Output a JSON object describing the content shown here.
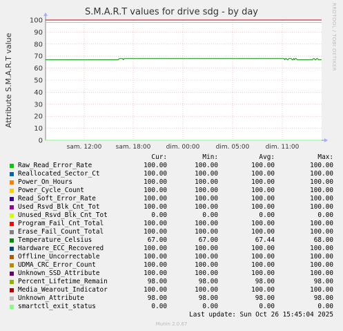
{
  "title": "S.M.A.R.T values for drive sdg - by day",
  "y_axis_label": "Attribute S.M.A.R.T value",
  "watermark": "RRDTOOL / TOBI OETIKER",
  "footer": "Munin 2.0.67",
  "last_update": "Last update: Sun Oct 26 15:45:04 2025",
  "legend_headers": {
    "cur": "Cur:",
    "min": "Min:",
    "avg": "Avg:",
    "max": "Max:"
  },
  "colors": {
    "background": "#f0f0f0",
    "plot_background": "#ffffff",
    "grid": "#e6a0a0",
    "frame": "#cccccc"
  },
  "chart_data": {
    "type": "line",
    "title": "S.M.A.R.T values for drive sdg - by day",
    "ylabel": "Attribute S.M.A.R.T value",
    "ylim": [
      0,
      100
    ],
    "yticks": [
      0,
      10,
      20,
      30,
      40,
      50,
      60,
      70,
      80,
      90,
      100
    ],
    "xticks": [
      "sam. 12:00",
      "sam. 18:00",
      "dim. 00:00",
      "dim. 05:00",
      "dim. 11:00"
    ],
    "grid": true,
    "series": [
      {
        "name": "Raw_Read_Error_Rate",
        "color": "#00cc00",
        "cur": "100.00",
        "min": "100.00",
        "avg": "100.00",
        "max": "100.00"
      },
      {
        "name": "Reallocated_Sector_Ct",
        "color": "#0066b3",
        "cur": "100.00",
        "min": "100.00",
        "avg": "100.00",
        "max": "100.00"
      },
      {
        "name": "Power_On_Hours",
        "color": "#ff8000",
        "cur": "100.00",
        "min": "100.00",
        "avg": "100.00",
        "max": "100.00"
      },
      {
        "name": "Power_Cycle_Count",
        "color": "#ffcc00",
        "cur": "100.00",
        "min": "100.00",
        "avg": "100.00",
        "max": "100.00"
      },
      {
        "name": "Read_Soft_Error_Rate",
        "color": "#330099",
        "cur": "100.00",
        "min": "100.00",
        "avg": "100.00",
        "max": "100.00"
      },
      {
        "name": "Used_Rsvd_Blk_Cnt_Tot",
        "color": "#990099",
        "cur": "100.00",
        "min": "100.00",
        "avg": "100.00",
        "max": "100.00"
      },
      {
        "name": "Unused_Rsvd_Blk_Cnt_Tot",
        "color": "#ccff00",
        "cur": "0.00",
        "min": "0.00",
        "avg": "0.00",
        "max": "0.00"
      },
      {
        "name": "Program_Fail_Cnt_Total",
        "color": "#ff0000",
        "cur": "100.00",
        "min": "100.00",
        "avg": "100.00",
        "max": "100.00"
      },
      {
        "name": "Erase_Fail_Count_Total",
        "color": "#808080",
        "cur": "100.00",
        "min": "100.00",
        "avg": "100.00",
        "max": "100.00"
      },
      {
        "name": "Temperature_Celsius",
        "color": "#008f00",
        "cur": "67.00",
        "min": "67.00",
        "avg": "67.44",
        "max": "68.00",
        "values": [
          67,
          67,
          67,
          67,
          67,
          67,
          67,
          67,
          67,
          67,
          67,
          67,
          67,
          67,
          67,
          67,
          67,
          67,
          67,
          67,
          67,
          67,
          67,
          67,
          67,
          67,
          67,
          67,
          67,
          67,
          67,
          67,
          67,
          67,
          67,
          67,
          67,
          67,
          67,
          67,
          67,
          67,
          67,
          67,
          67,
          67,
          67,
          67,
          67,
          67,
          67,
          67,
          67,
          67,
          67,
          67,
          67,
          67,
          67,
          67,
          67,
          67,
          67,
          67,
          67,
          67,
          67,
          67,
          67,
          67,
          67,
          67,
          67,
          67,
          67,
          67,
          67,
          67,
          67,
          67,
          67,
          67,
          67,
          67,
          67,
          67,
          67,
          67,
          67,
          67,
          68,
          68,
          68,
          68,
          68,
          67,
          68,
          68,
          68,
          68,
          68,
          68,
          68,
          68,
          68,
          68,
          68,
          68,
          68,
          68,
          68,
          68,
          68,
          68,
          68,
          68,
          68,
          68,
          68,
          68,
          68,
          68,
          68,
          68,
          68,
          68,
          68,
          68,
          68,
          68,
          68,
          68,
          68,
          68,
          68,
          68,
          68,
          68,
          68,
          68,
          68,
          68,
          68,
          68,
          68,
          68,
          68,
          68,
          68,
          68,
          68,
          68,
          68,
          68,
          68,
          68,
          68,
          68,
          68,
          68,
          68,
          68,
          68,
          68,
          68,
          68,
          68,
          68,
          68,
          68,
          68,
          68,
          68,
          68,
          68,
          68,
          68,
          68,
          68,
          68,
          68,
          68,
          68,
          68,
          68,
          68,
          68,
          68,
          68,
          68,
          68,
          68,
          68,
          68,
          68,
          68,
          68,
          68,
          68,
          68,
          68,
          68,
          68,
          68,
          68,
          68,
          68,
          68,
          68,
          68,
          68,
          68,
          68,
          68,
          68,
          68,
          68,
          68,
          68,
          68,
          68,
          68,
          68,
          68,
          68,
          68,
          68,
          68,
          68,
          68,
          68,
          68,
          68,
          68,
          68,
          68,
          68,
          68,
          68,
          68,
          68,
          68,
          68,
          68,
          68,
          68,
          68,
          68,
          68,
          68,
          68,
          68,
          68,
          68,
          68,
          68,
          68,
          68,
          68,
          68,
          68,
          68,
          68,
          68,
          68,
          68,
          68,
          68,
          68,
          68,
          68,
          68,
          68,
          68,
          68,
          68,
          68,
          68,
          68,
          68,
          68,
          68,
          68,
          68,
          68,
          68,
          68,
          68,
          68,
          68,
          68,
          68,
          67,
          68,
          68,
          67,
          67,
          68,
          68,
          68,
          68,
          67,
          67,
          68,
          67,
          68,
          68,
          67,
          67,
          67,
          67,
          67,
          67,
          67,
          67,
          67,
          67,
          67,
          67,
          67,
          67,
          67,
          67,
          67,
          67,
          67,
          67,
          68,
          68,
          67,
          67,
          68,
          68,
          67,
          67,
          67,
          67,
          67
        ]
      },
      {
        "name": "Hardware_ECC_Recovered",
        "color": "#00487d",
        "cur": "100.00",
        "min": "100.00",
        "avg": "100.00",
        "max": "100.00"
      },
      {
        "name": "Offline_Uncorrectable",
        "color": "#b35a00",
        "cur": "100.00",
        "min": "100.00",
        "avg": "100.00",
        "max": "100.00"
      },
      {
        "name": "UDMA_CRC_Error_Count",
        "color": "#b38f00",
        "cur": "100.00",
        "min": "100.00",
        "avg": "100.00",
        "max": "100.00"
      },
      {
        "name": "Unknown_SSD_Attribute",
        "color": "#6b006b",
        "cur": "100.00",
        "min": "100.00",
        "avg": "100.00",
        "max": "100.00"
      },
      {
        "name": "Percent_Lifetime_Remain",
        "color": "#8fb300",
        "cur": "98.00",
        "min": "98.00",
        "avg": "98.00",
        "max": "98.00"
      },
      {
        "name": "Media_Wearout_Indicator",
        "color": "#b30000",
        "cur": "100.00",
        "min": "100.00",
        "avg": "100.00",
        "max": "100.00"
      },
      {
        "name": "Unknown_Attribute",
        "color": "#bebebe",
        "cur": "98.00",
        "min": "98.00",
        "avg": "98.00",
        "max": "98.00"
      },
      {
        "name": "smartctl_exit_status",
        "color": "#80ff80",
        "cur": "0.00",
        "min": "0.00",
        "avg": "0.00",
        "max": "0.00"
      }
    ]
  }
}
